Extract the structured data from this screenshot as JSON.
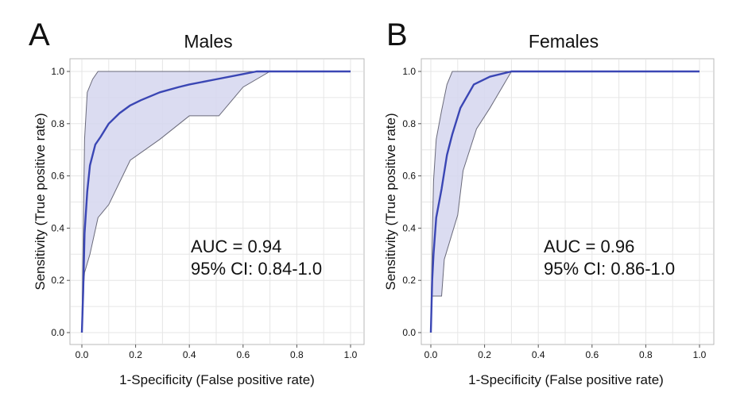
{
  "chart_data": [
    {
      "type": "line",
      "panel_label": "A",
      "title": "Males",
      "xlabel": "1-Specificity (False positive rate)",
      "ylabel": "Sensitivity (True positive rate)",
      "xlim": [
        0,
        1
      ],
      "ylim": [
        0,
        1
      ],
      "x_ticks": [
        "0.0",
        "0.2",
        "0.4",
        "0.6",
        "0.8",
        "1.0"
      ],
      "y_ticks": [
        "0.0",
        "0.2",
        "0.4",
        "0.6",
        "0.8",
        "1.0"
      ],
      "grid": true,
      "series": [
        {
          "x": [
            0,
            0.005,
            0.01,
            0.02,
            0.03,
            0.05,
            0.07,
            0.1,
            0.14,
            0.18,
            0.22,
            0.29,
            0.36,
            0.4,
            0.5,
            0.6,
            0.65,
            0.7,
            1.0
          ],
          "y": [
            0,
            0.16,
            0.38,
            0.54,
            0.64,
            0.72,
            0.75,
            0.8,
            0.84,
            0.87,
            0.89,
            0.92,
            0.94,
            0.95,
            0.97,
            0.99,
            1.0,
            1.0,
            1.0
          ]
        }
      ],
      "confidence_band": {
        "upper": {
          "x": [
            0,
            0.005,
            0.01,
            0.02,
            0.04,
            0.06,
            1.0
          ],
          "y": [
            0,
            0.38,
            0.74,
            0.92,
            0.97,
            1.0,
            1.0
          ]
        },
        "lower": {
          "x": [
            0,
            0.005,
            0.01,
            0.03,
            0.06,
            0.1,
            0.18,
            0.29,
            0.4,
            0.51,
            0.6,
            0.7,
            1.0
          ],
          "y": [
            0,
            0.16,
            0.23,
            0.3,
            0.44,
            0.49,
            0.66,
            0.74,
            0.83,
            0.83,
            0.94,
            1.0,
            1.0
          ]
        }
      },
      "annotation": [
        "AUC = 0.94",
        "95% CI: 0.84-1.0"
      ]
    },
    {
      "type": "line",
      "panel_label": "B",
      "title": "Females",
      "xlabel": "1-Specificity (False positive rate)",
      "ylabel": "Sensitivity (True positive rate)",
      "xlim": [
        0,
        1
      ],
      "ylim": [
        0,
        1
      ],
      "x_ticks": [
        "0.0",
        "0.2",
        "0.4",
        "0.6",
        "0.8",
        "1.0"
      ],
      "y_ticks": [
        "0.0",
        "0.2",
        "0.4",
        "0.6",
        "0.8",
        "1.0"
      ],
      "grid": true,
      "series": [
        {
          "x": [
            0,
            0.005,
            0.01,
            0.02,
            0.04,
            0.06,
            0.08,
            0.11,
            0.16,
            0.22,
            0.3,
            1.0
          ],
          "y": [
            0,
            0.2,
            0.3,
            0.44,
            0.55,
            0.68,
            0.76,
            0.86,
            0.95,
            0.98,
            1.0,
            1.0
          ]
        }
      ],
      "confidence_band": {
        "upper": {
          "x": [
            0,
            0.005,
            0.01,
            0.02,
            0.04,
            0.06,
            0.08,
            1.0
          ],
          "y": [
            0,
            0.34,
            0.58,
            0.74,
            0.85,
            0.95,
            1.0,
            1.0
          ]
        },
        "lower": {
          "x": [
            0,
            0.005,
            0.04,
            0.05,
            0.1,
            0.12,
            0.17,
            0.22,
            0.3,
            1.0
          ],
          "y": [
            0,
            0.14,
            0.14,
            0.28,
            0.45,
            0.62,
            0.78,
            0.86,
            1.0,
            1.0
          ]
        }
      },
      "annotation": [
        "AUC = 0.96",
        "95% CI: 0.86-1.0"
      ]
    }
  ]
}
